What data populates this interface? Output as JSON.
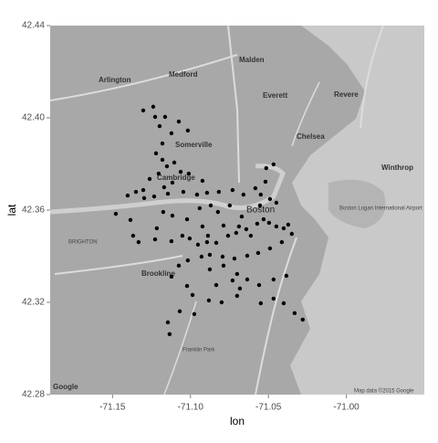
{
  "chart_data": {
    "type": "scatter",
    "x_label": "lon",
    "y_label": "lat",
    "xlim": [
      -71.19,
      -70.95
    ],
    "ylim": [
      42.28,
      42.44
    ],
    "xticks": [
      -71.15,
      {
        "value": -71.1,
        "label": "-71.10"
      },
      -71.05,
      {
        "value": -71,
        "label": "-71.00"
      }
    ],
    "yticks": [
      42.44,
      {
        "value": 42.4,
        "label": "42.40"
      },
      42.36,
      42.32,
      42.28
    ],
    "color": "#000000",
    "x": [
      -71.1303,
      -71.1239,
      -71.1227,
      -71.1163,
      -71.1198,
      -71.1075,
      -71.118,
      -71.1122,
      -71.1017,
      -71.1221,
      -71.118,
      -71.1151,
      -71.1104,
      -71.1204,
      -71.1063,
      -71.1011,
      -71.0923,
      -71.1169,
      -71.1116,
      -71.1262,
      -71.1303,
      -71.135,
      -71.1403,
      -71.1297,
      -71.1233,
      -71.1145,
      -71.1046,
      -71.0958,
      -71.0894,
      -71.0818,
      -71.073,
      -71.066,
      -71.0584,
      -71.0519,
      -71.0514,
      -71.0467,
      -71.0549,
      -71.049,
      -71.0449,
      -71.0748,
      -71.0824,
      -71.087,
      -71.0941,
      -71.1022,
      -71.1116,
      -71.1175,
      -71.1479,
      -71.1385,
      -71.1368,
      -71.1333,
      -71.1227,
      -71.1122,
      -71.1052,
      -71.1005,
      -71.0952,
      -71.0894,
      -71.0835,
      -71.0759,
      -71.0707,
      -71.0642,
      -71.0572,
      -71.0531,
      -71.0496,
      -71.0449,
      -71.0402,
      -71.0373,
      -71.035,
      -71.0414,
      -71.049,
      -71.0566,
      -71.0636,
      -71.0718,
      -71.0794,
      -71.0876,
      -71.0929,
      -71.1017,
      -71.1075,
      -71.0876,
      -71.0788,
      -71.0701,
      -71.0636,
      -71.056,
      -71.0467,
      -71.0385,
      -71.1122,
      -71.1022,
      -71.0987,
      -71.0882,
      -71.08,
      -71.0701,
      -71.0549,
      -71.0467,
      -71.0402,
      -71.0332,
      -71.028,
      -71.0976,
      -71.1069,
      -71.1145,
      -71.1134,
      -71.073,
      -71.0683,
      -71.0835,
      -71.0613,
      -71.0689,
      -71.0788,
      -71.1216,
      -71.0923,
      -71.0554,
      -71.0671,
      -71.0888
    ],
    "y": [
      42.4032,
      42.4048,
      42.4004,
      42.4004,
      42.3964,
      42.3984,
      42.3889,
      42.3933,
      42.3945,
      42.3846,
      42.3818,
      42.379,
      42.3806,
      42.3758,
      42.3766,
      42.3758,
      42.3727,
      42.3699,
      42.3719,
      42.3735,
      42.3687,
      42.3679,
      42.3663,
      42.3652,
      42.3659,
      42.3671,
      42.3679,
      42.3667,
      42.3675,
      42.3679,
      42.3687,
      42.3667,
      42.3695,
      42.3723,
      42.3782,
      42.3798,
      42.3667,
      42.3648,
      42.3632,
      42.362,
      42.3592,
      42.362,
      42.3608,
      42.356,
      42.3576,
      42.3592,
      42.3584,
      42.3557,
      42.3489,
      42.3461,
      42.3473,
      42.3465,
      42.3489,
      42.3477,
      42.345,
      42.3461,
      42.3458,
      42.3489,
      42.3501,
      42.3517,
      42.3541,
      42.356,
      42.3545,
      42.3529,
      42.3521,
      42.3537,
      42.3497,
      42.3461,
      42.3434,
      42.3414,
      42.3402,
      42.339,
      42.3398,
      42.3406,
      42.3398,
      42.3382,
      42.3359,
      42.3343,
      42.3359,
      42.3323,
      42.3299,
      42.3275,
      42.3299,
      42.3315,
      42.3311,
      42.3271,
      42.3232,
      42.3208,
      42.32,
      42.3228,
      42.3196,
      42.3216,
      42.3196,
      42.3153,
      42.3125,
      42.3149,
      42.3161,
      42.3113,
      42.3062,
      42.3295,
      42.326,
      42.3275,
      42.3489,
      42.3529,
      42.3533,
      42.3521,
      42.3529,
      42.362,
      42.3572,
      42.3489
    ]
  },
  "map_labels": [
    "Arlington",
    "Medford",
    "Malden",
    "Everett",
    "Revere",
    "Somerville",
    "Cambridge",
    "Chelsea",
    "Boston",
    "Winthrop",
    "BRIGHTON",
    "Brookline",
    "Franklin Park",
    "Boston Logan International Airport",
    "Map data ©2015 Google",
    "Google"
  ]
}
